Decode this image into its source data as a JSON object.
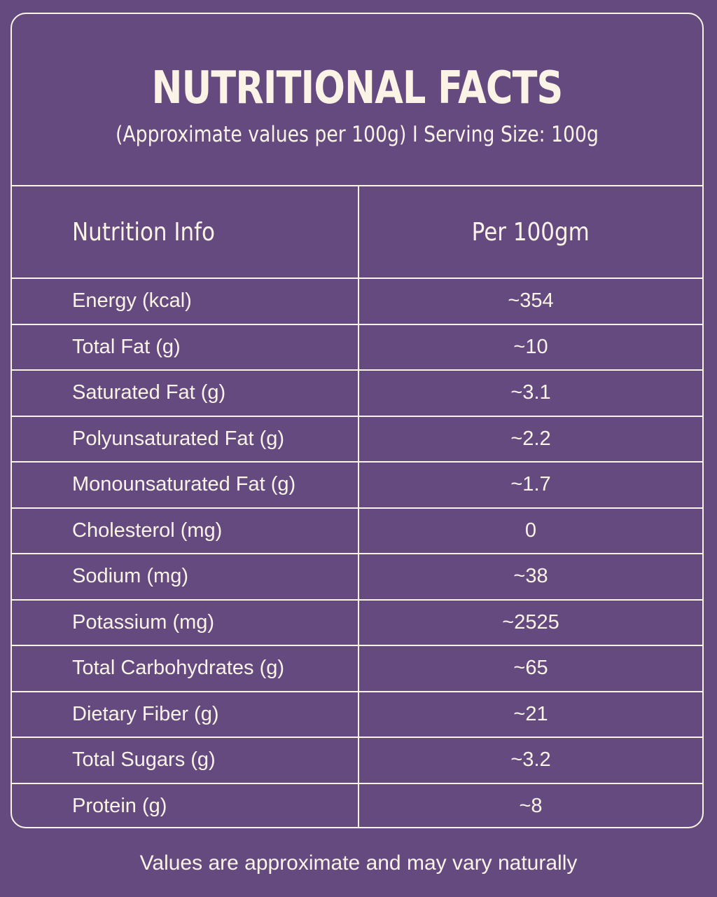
{
  "header": {
    "title": "NUTRITIONAL FACTS",
    "subtitle": "(Approximate values per 100g) I Serving Size: 100g"
  },
  "table": {
    "columns": [
      "Nutrition Info",
      "Per 100gm"
    ],
    "rows": [
      {
        "name": "Energy (kcal)",
        "value": "~354"
      },
      {
        "name": "Total Fat (g)",
        "value": "~10"
      },
      {
        "name": "Saturated Fat (g)",
        "value": "~3.1"
      },
      {
        "name": "Polyunsaturated Fat (g)",
        "value": "~2.2"
      },
      {
        "name": "Monounsaturated Fat (g)",
        "value": "~1.7"
      },
      {
        "name": "Cholesterol (mg)",
        "value": "0"
      },
      {
        "name": "Sodium (mg)",
        "value": "~38"
      },
      {
        "name": "Potassium (mg)",
        "value": "~2525"
      },
      {
        "name": "Total Carbohydrates (g)",
        "value": "~65"
      },
      {
        "name": "Dietary Fiber (g)",
        "value": "~21"
      },
      {
        "name": "Total Sugars (g)",
        "value": "~3.2"
      },
      {
        "name": "Protein (g)",
        "value": "~8"
      }
    ]
  },
  "footnote": "Values are approximate and may vary naturally",
  "colors": {
    "background": "#654a80",
    "text": "#faf3e6",
    "border": "#faf3e6"
  }
}
